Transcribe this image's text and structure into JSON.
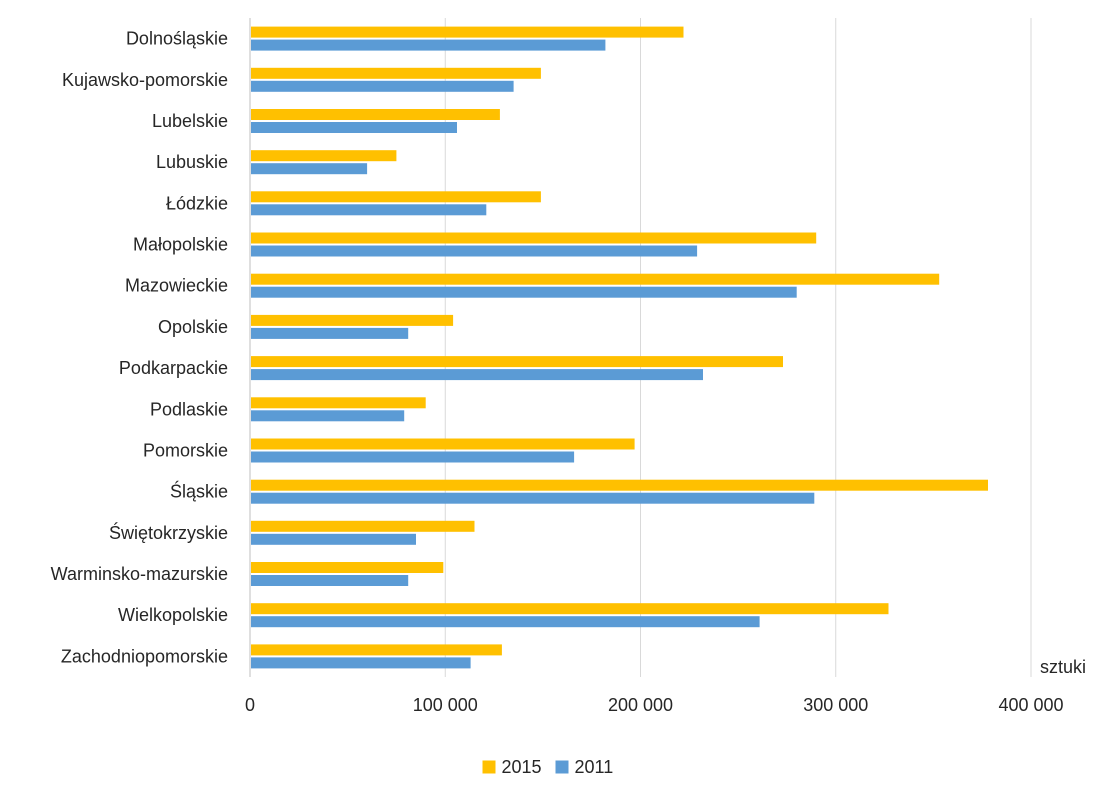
{
  "chart_data": {
    "type": "bar",
    "orientation": "horizontal",
    "categories": [
      "Dolnośląskie",
      "Kujawsko-pomorskie",
      "Lubelskie",
      "Lubuskie",
      "Łódzkie",
      "Małopolskie",
      "Mazowieckie",
      "Opolskie",
      "Podkarpackie",
      "Podlaskie",
      "Pomorskie",
      "Śląskie",
      "Świętokrzyskie",
      "Warminsko-mazurskie",
      "Wielkopolskie",
      "Zachodniopomorskie"
    ],
    "series": [
      {
        "name": "2015",
        "color": "#FFC000",
        "values": [
          222000,
          149000,
          128000,
          75000,
          149000,
          290000,
          353000,
          104000,
          273000,
          90000,
          197000,
          378000,
          115000,
          99000,
          327000,
          129000
        ]
      },
      {
        "name": "2011",
        "color": "#5B9BD5",
        "values": [
          182000,
          135000,
          106000,
          60000,
          121000,
          229000,
          280000,
          81000,
          232000,
          79000,
          166000,
          289000,
          85000,
          81000,
          261000,
          113000
        ]
      }
    ],
    "xlim": [
      0,
      400000
    ],
    "xticks": [
      0,
      100000,
      200000,
      300000,
      400000
    ],
    "xtick_labels": [
      "0",
      "100 000",
      "200 000",
      "300 000",
      "400 000"
    ],
    "x_unit_label": "sztuki",
    "legend": {
      "position": "bottom",
      "entries": [
        "2015",
        "2011"
      ]
    },
    "grid": "vertical"
  }
}
